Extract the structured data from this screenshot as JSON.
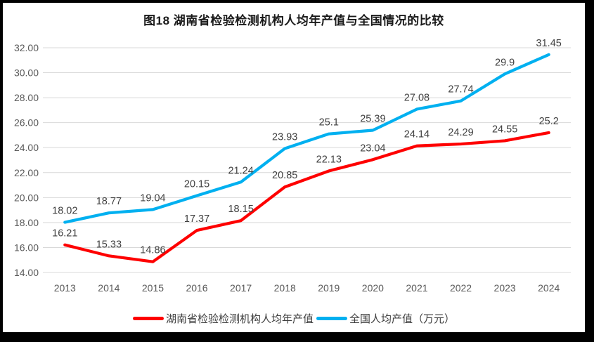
{
  "title": "图18 湖南省检验检测机构人均年产值与全国情况的比较",
  "legend": [
    {
      "label": "湖南省检验检测机构人均年产值",
      "color": "#FE0000"
    },
    {
      "label": "全国人均产值（万元）",
      "color": "#00B0F0"
    }
  ],
  "chart_data": {
    "type": "line",
    "title": "图18 湖南省检验检测机构人均年产值与全国情况的比较",
    "categories": [
      "2013",
      "2014",
      "2015",
      "2016",
      "2017",
      "2018",
      "2019",
      "2020",
      "2021",
      "2022",
      "2023",
      "2024"
    ],
    "series": [
      {
        "name": "湖南省检验检测机构人均年产值",
        "color": "#FE0000",
        "values": [
          16.21,
          15.33,
          14.86,
          17.37,
          18.15,
          20.85,
          22.13,
          23.04,
          24.14,
          24.29,
          24.55,
          25.2
        ]
      },
      {
        "name": "全国人均产值（万元）",
        "color": "#00B0F0",
        "values": [
          18.02,
          18.77,
          19.04,
          20.15,
          21.24,
          23.93,
          25.1,
          25.39,
          27.08,
          27.74,
          29.9,
          31.45
        ]
      }
    ],
    "xlabel": "",
    "ylabel": "",
    "ylim": [
      14,
      32
    ],
    "ytick_step": 2,
    "ytick_format": "2dp",
    "grid": true,
    "data_labels": true,
    "legend_position": "bottom"
  },
  "colors": {
    "frame_bg": "#000000",
    "panel_bg": "#ffffff",
    "gridline": "#d9d9d9",
    "axis_label": "#595959",
    "data_label": "#404040",
    "title": "#1a1a1a"
  }
}
